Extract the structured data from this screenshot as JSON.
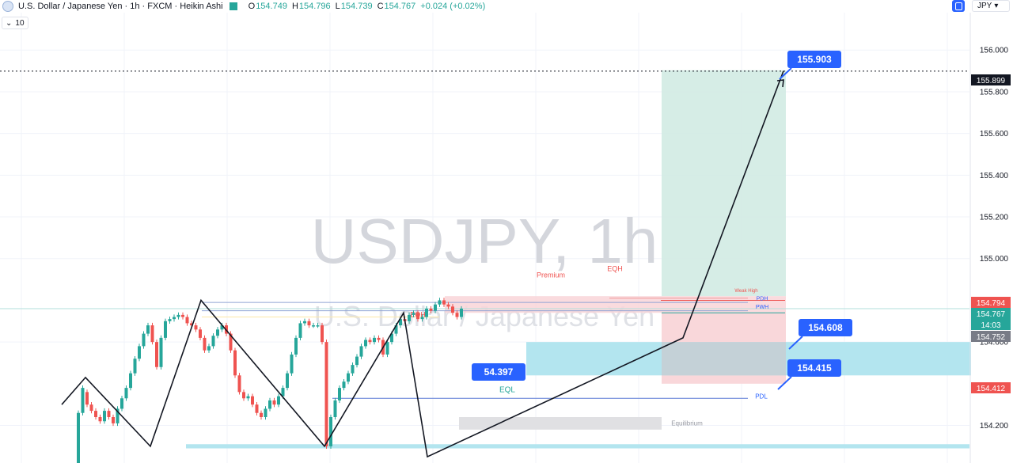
{
  "header": {
    "symbol_title": "U.S. Dollar / Japanese Yen · 1h · FXCM · Heikin Ashi",
    "open_label": "O",
    "open": "154.749",
    "high_label": "H",
    "high": "154.796",
    "low_label": "L",
    "low": "154.739",
    "close_label": "C",
    "close": "154.767",
    "change": "+0.024 (+0.02%)",
    "interval_value": "10",
    "currency": "JPY"
  },
  "watermark": {
    "title": "USDJPY, 1h",
    "subtitle": "U.S. Dollar / Japanese Yen"
  },
  "colors": {
    "up": "#26a69a",
    "down": "#ef5350",
    "profit_zone": "#d2ebe3",
    "loss_zone": "#f9d5d8",
    "fvg_zone": "#b3e5ef",
    "label_blue": "#2962ff"
  },
  "chart_data": {
    "type": "candlestick",
    "title": "USDJPY, 1h",
    "subtitle": "U.S. Dollar / Japanese Yen",
    "ylim": [
      154.1,
      156.24
    ],
    "y_ticks": [
      "156.000",
      "155.800",
      "155.600",
      "155.400",
      "155.200",
      "155.000",
      "154.600",
      "154.200"
    ],
    "price_tags": [
      {
        "value": "155.899",
        "style": "dark"
      },
      {
        "value": "154.794",
        "style": "red"
      },
      {
        "value": "154.767",
        "style": "green"
      },
      {
        "value": "14:03",
        "style": "green-sub"
      },
      {
        "value": "154.752",
        "style": "gray"
      },
      {
        "value": "154.412",
        "style": "red"
      }
    ],
    "callouts": [
      {
        "text": "155.903",
        "price": 155.903
      },
      {
        "text": "154.608",
        "price": 154.608
      },
      {
        "text": "154.415",
        "price": 154.415
      },
      {
        "text": "54.397",
        "price": 154.397
      }
    ],
    "level_labels": [
      {
        "text": "Premium",
        "color": "#ef5350"
      },
      {
        "text": "EQH",
        "color": "#ef5350"
      },
      {
        "text": "EQH",
        "color": "#ef5350"
      },
      {
        "text": "PDH",
        "color": "#2962ff"
      },
      {
        "text": "PWH",
        "color": "#2962ff"
      },
      {
        "text": "Weak High",
        "color": "#ef5350"
      },
      {
        "text": "EQL",
        "color": "#26a69a"
      },
      {
        "text": "PDL",
        "color": "#2962ff"
      },
      {
        "text": "Equilibrium",
        "color": "#9598a1"
      }
    ],
    "key_prices": {
      "target": 155.903,
      "entry_top": 154.608,
      "entry_bottom": 154.415,
      "pdh": 154.79,
      "pwh": 154.75,
      "pdl": 154.33,
      "equilibrium": 154.22
    },
    "path_points": [
      154.3,
      154.43,
      154.1,
      154.8,
      154.1,
      154.74,
      154.05,
      154.62,
      155.9
    ],
    "candles": [
      {
        "o": 154.0,
        "c": 154.26
      },
      {
        "o": 154.26,
        "c": 154.38
      },
      {
        "o": 154.36,
        "c": 154.3
      },
      {
        "o": 154.3,
        "c": 154.27
      },
      {
        "o": 154.27,
        "c": 154.24
      },
      {
        "o": 154.24,
        "c": 154.22
      },
      {
        "o": 154.22,
        "c": 154.27
      },
      {
        "o": 154.27,
        "c": 154.24
      },
      {
        "o": 154.24,
        "c": 154.21
      },
      {
        "o": 154.21,
        "c": 154.28
      },
      {
        "o": 154.28,
        "c": 154.33
      },
      {
        "o": 154.33,
        "c": 154.38
      },
      {
        "o": 154.38,
        "c": 154.45
      },
      {
        "o": 154.45,
        "c": 154.52
      },
      {
        "o": 154.52,
        "c": 154.58
      },
      {
        "o": 154.58,
        "c": 154.64
      },
      {
        "o": 154.64,
        "c": 154.68
      },
      {
        "o": 154.68,
        "c": 154.6
      },
      {
        "o": 154.6,
        "c": 154.48
      },
      {
        "o": 154.48,
        "c": 154.62
      },
      {
        "o": 154.62,
        "c": 154.7
      },
      {
        "o": 154.7,
        "c": 154.71
      },
      {
        "o": 154.71,
        "c": 154.72
      },
      {
        "o": 154.72,
        "c": 154.73
      },
      {
        "o": 154.73,
        "c": 154.72
      },
      {
        "o": 154.72,
        "c": 154.69
      },
      {
        "o": 154.69,
        "c": 154.68
      },
      {
        "o": 154.68,
        "c": 154.66
      },
      {
        "o": 154.66,
        "c": 154.62
      },
      {
        "o": 154.62,
        "c": 154.56
      },
      {
        "o": 154.56,
        "c": 154.58
      },
      {
        "o": 154.58,
        "c": 154.63
      },
      {
        "o": 154.63,
        "c": 154.66
      },
      {
        "o": 154.66,
        "c": 154.68
      },
      {
        "o": 154.68,
        "c": 154.64
      },
      {
        "o": 154.64,
        "c": 154.56
      },
      {
        "o": 154.56,
        "c": 154.44
      },
      {
        "o": 154.44,
        "c": 154.36
      },
      {
        "o": 154.36,
        "c": 154.33
      },
      {
        "o": 154.33,
        "c": 154.34
      },
      {
        "o": 154.34,
        "c": 154.3
      },
      {
        "o": 154.3,
        "c": 154.26
      },
      {
        "o": 154.26,
        "c": 154.24
      },
      {
        "o": 154.24,
        "c": 154.28
      },
      {
        "o": 154.28,
        "c": 154.32
      },
      {
        "o": 154.32,
        "c": 154.3
      },
      {
        "o": 154.3,
        "c": 154.34
      },
      {
        "o": 154.34,
        "c": 154.38
      },
      {
        "o": 154.38,
        "c": 154.45
      },
      {
        "o": 154.45,
        "c": 154.54
      },
      {
        "o": 154.54,
        "c": 154.62
      },
      {
        "o": 154.62,
        "c": 154.69
      },
      {
        "o": 154.69,
        "c": 154.7
      },
      {
        "o": 154.7,
        "c": 154.68
      },
      {
        "o": 154.68,
        "c": 154.68
      },
      {
        "o": 154.68,
        "c": 154.68
      },
      {
        "o": 154.68,
        "c": 154.6
      },
      {
        "o": 154.6,
        "c": 154.1
      },
      {
        "o": 154.1,
        "c": 154.24
      },
      {
        "o": 154.24,
        "c": 154.32
      },
      {
        "o": 154.32,
        "c": 154.38
      },
      {
        "o": 154.38,
        "c": 154.41
      },
      {
        "o": 154.41,
        "c": 154.45
      },
      {
        "o": 154.45,
        "c": 154.49
      },
      {
        "o": 154.49,
        "c": 154.53
      },
      {
        "o": 154.53,
        "c": 154.58
      },
      {
        "o": 154.58,
        "c": 154.61
      },
      {
        "o": 154.61,
        "c": 154.6
      },
      {
        "o": 154.6,
        "c": 154.62
      },
      {
        "o": 154.62,
        "c": 154.61
      },
      {
        "o": 154.61,
        "c": 154.54
      },
      {
        "o": 154.54,
        "c": 154.6
      },
      {
        "o": 154.6,
        "c": 154.64
      },
      {
        "o": 154.64,
        "c": 154.68
      },
      {
        "o": 154.68,
        "c": 154.71
      },
      {
        "o": 154.71,
        "c": 154.7
      },
      {
        "o": 154.7,
        "c": 154.73
      },
      {
        "o": 154.73,
        "c": 154.74
      },
      {
        "o": 154.74,
        "c": 154.71
      },
      {
        "o": 154.71,
        "c": 154.72
      },
      {
        "o": 154.72,
        "c": 154.76
      },
      {
        "o": 154.76,
        "c": 154.75
      },
      {
        "o": 154.75,
        "c": 154.78
      },
      {
        "o": 154.78,
        "c": 154.8
      },
      {
        "o": 154.8,
        "c": 154.78
      },
      {
        "o": 154.78,
        "c": 154.77
      },
      {
        "o": 154.77,
        "c": 154.74
      },
      {
        "o": 154.74,
        "c": 154.72
      },
      {
        "o": 154.72,
        "c": 154.76
      }
    ]
  }
}
